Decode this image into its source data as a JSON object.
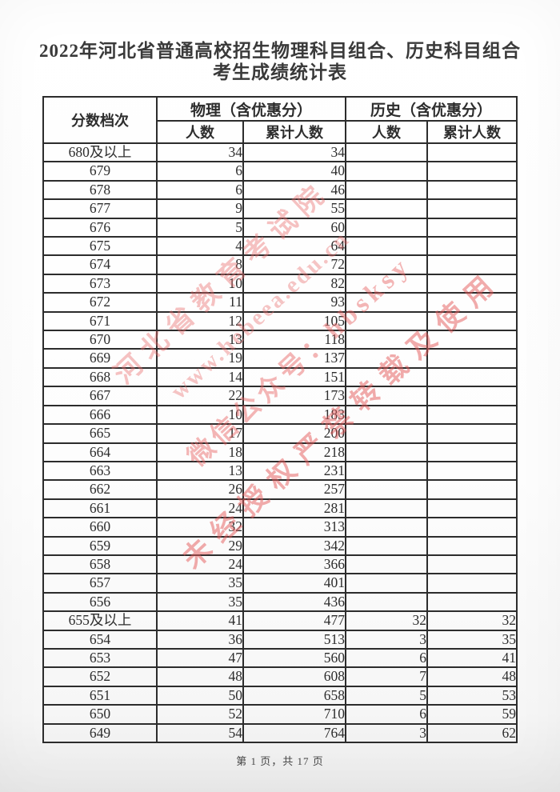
{
  "page": {
    "title_line1": "2022年河北省普通高校招生物理科目组合、历史科目组合",
    "title_line2": "考生成绩统计表",
    "footer": "第 1 页，共 17 页"
  },
  "watermark": {
    "color": "#e76a6a",
    "lines": [
      "河北省教育考试院",
      "www.hebeea.edu.cn",
      "微信公众号：hbsksy",
      "未经授权严禁转载及使用"
    ]
  },
  "table": {
    "header": {
      "score_tier": "分数档次",
      "physics_group": "物理（含优惠分）",
      "history_group": "历史（含优惠分）",
      "count": "人数",
      "cumulative": "累计人数",
      "count2": "人数",
      "cumulative2": "累计人数"
    },
    "rows": [
      {
        "tier": "680及以上",
        "phy_count": "34",
        "phy_cum": "34",
        "his_count": "",
        "his_cum": ""
      },
      {
        "tier": "679",
        "phy_count": "6",
        "phy_cum": "40",
        "his_count": "",
        "his_cum": ""
      },
      {
        "tier": "678",
        "phy_count": "6",
        "phy_cum": "46",
        "his_count": "",
        "his_cum": ""
      },
      {
        "tier": "677",
        "phy_count": "9",
        "phy_cum": "55",
        "his_count": "",
        "his_cum": ""
      },
      {
        "tier": "676",
        "phy_count": "5",
        "phy_cum": "60",
        "his_count": "",
        "his_cum": ""
      },
      {
        "tier": "675",
        "phy_count": "4",
        "phy_cum": "64",
        "his_count": "",
        "his_cum": ""
      },
      {
        "tier": "674",
        "phy_count": "8",
        "phy_cum": "72",
        "his_count": "",
        "his_cum": ""
      },
      {
        "tier": "673",
        "phy_count": "10",
        "phy_cum": "82",
        "his_count": "",
        "his_cum": ""
      },
      {
        "tier": "672",
        "phy_count": "11",
        "phy_cum": "93",
        "his_count": "",
        "his_cum": ""
      },
      {
        "tier": "671",
        "phy_count": "12",
        "phy_cum": "105",
        "his_count": "",
        "his_cum": ""
      },
      {
        "tier": "670",
        "phy_count": "13",
        "phy_cum": "118",
        "his_count": "",
        "his_cum": ""
      },
      {
        "tier": "669",
        "phy_count": "19",
        "phy_cum": "137",
        "his_count": "",
        "his_cum": ""
      },
      {
        "tier": "668",
        "phy_count": "14",
        "phy_cum": "151",
        "his_count": "",
        "his_cum": ""
      },
      {
        "tier": "667",
        "phy_count": "22",
        "phy_cum": "173",
        "his_count": "",
        "his_cum": ""
      },
      {
        "tier": "666",
        "phy_count": "10",
        "phy_cum": "183",
        "his_count": "",
        "his_cum": ""
      },
      {
        "tier": "665",
        "phy_count": "17",
        "phy_cum": "200",
        "his_count": "",
        "his_cum": ""
      },
      {
        "tier": "664",
        "phy_count": "18",
        "phy_cum": "218",
        "his_count": "",
        "his_cum": ""
      },
      {
        "tier": "663",
        "phy_count": "13",
        "phy_cum": "231",
        "his_count": "",
        "his_cum": ""
      },
      {
        "tier": "662",
        "phy_count": "26",
        "phy_cum": "257",
        "his_count": "",
        "his_cum": ""
      },
      {
        "tier": "661",
        "phy_count": "24",
        "phy_cum": "281",
        "his_count": "",
        "his_cum": ""
      },
      {
        "tier": "660",
        "phy_count": "32",
        "phy_cum": "313",
        "his_count": "",
        "his_cum": ""
      },
      {
        "tier": "659",
        "phy_count": "29",
        "phy_cum": "342",
        "his_count": "",
        "his_cum": ""
      },
      {
        "tier": "658",
        "phy_count": "24",
        "phy_cum": "366",
        "his_count": "",
        "his_cum": ""
      },
      {
        "tier": "657",
        "phy_count": "35",
        "phy_cum": "401",
        "his_count": "",
        "his_cum": ""
      },
      {
        "tier": "656",
        "phy_count": "35",
        "phy_cum": "436",
        "his_count": "",
        "his_cum": ""
      },
      {
        "tier": "655及以上",
        "phy_count": "41",
        "phy_cum": "477",
        "his_count": "32",
        "his_cum": "32"
      },
      {
        "tier": "654",
        "phy_count": "36",
        "phy_cum": "513",
        "his_count": "3",
        "his_cum": "35"
      },
      {
        "tier": "653",
        "phy_count": "47",
        "phy_cum": "560",
        "his_count": "6",
        "his_cum": "41"
      },
      {
        "tier": "652",
        "phy_count": "48",
        "phy_cum": "608",
        "his_count": "7",
        "his_cum": "48"
      },
      {
        "tier": "651",
        "phy_count": "50",
        "phy_cum": "658",
        "his_count": "5",
        "his_cum": "53"
      },
      {
        "tier": "650",
        "phy_count": "52",
        "phy_cum": "710",
        "his_count": "6",
        "his_cum": "59"
      },
      {
        "tier": "649",
        "phy_count": "54",
        "phy_cum": "764",
        "his_count": "3",
        "his_cum": "62"
      }
    ]
  }
}
